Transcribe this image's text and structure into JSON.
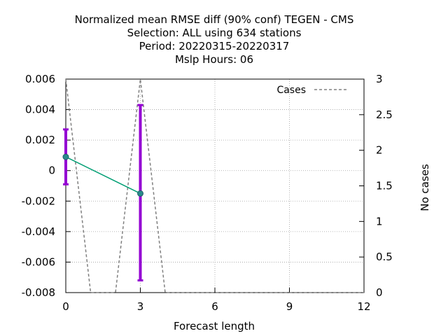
{
  "chart_data": {
    "type": "line",
    "title": [
      "Normalized mean RMSE diff (90% conf) TEGEN - CMS",
      "Selection: ALL using   634 stations",
      "Period: 20220315-20220317",
      "Mslp   Hours:  06"
    ],
    "xlabel": "Forecast length",
    "ylabel": "",
    "y2label": "No cases",
    "xlim": [
      0,
      12
    ],
    "ylim": [
      -0.008,
      0.006
    ],
    "y2lim": [
      0,
      3
    ],
    "xticks": [
      "0",
      "3",
      "6",
      "9",
      "12"
    ],
    "xtick_values": [
      0,
      3,
      6,
      9,
      12
    ],
    "yticks": [
      "0.006",
      "0.004",
      "0.002",
      "0",
      "-0.002",
      "-0.004",
      "-0.006",
      "-0.008"
    ],
    "ytick_values": [
      0.006,
      0.004,
      0.002,
      0,
      -0.002,
      -0.004,
      -0.006,
      -0.008
    ],
    "y2ticks": [
      "3",
      "2.5",
      "2",
      "1.5",
      "1",
      "0.5",
      "0"
    ],
    "y2tick_values": [
      3,
      2.5,
      2,
      1.5,
      1,
      0.5,
      0
    ],
    "grid": true,
    "legend_position": "top-right",
    "series": [
      {
        "kind": "mean_diff",
        "x": [
          0,
          3
        ],
        "y": [
          0.0009,
          -0.0015
        ],
        "ci_low": [
          -0.0009,
          -0.0072
        ],
        "ci_high": [
          0.0027,
          0.0043
        ],
        "color": "#009e73",
        "errorbar_color": "#9400d3"
      },
      {
        "kind": "cases",
        "name": "Cases",
        "axis": "y2",
        "x": [
          0,
          1,
          2,
          3,
          4,
          5,
          6,
          7,
          8,
          9,
          10,
          11,
          12
        ],
        "y": [
          3,
          0,
          0,
          3,
          0,
          0,
          0,
          0,
          0,
          0,
          0,
          0,
          0
        ],
        "color": "#808080",
        "dashed": true
      }
    ]
  }
}
